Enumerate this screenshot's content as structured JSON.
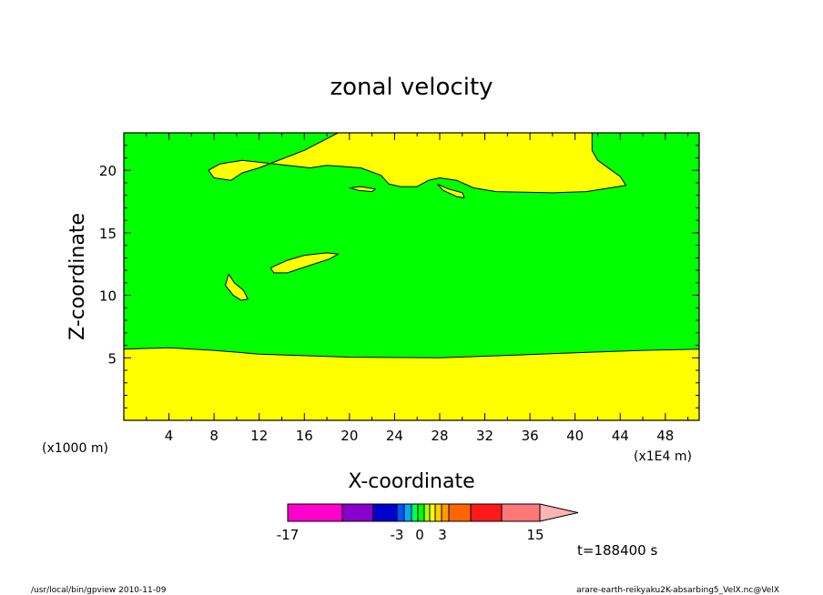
{
  "chart_data": {
    "type": "heatmap",
    "title": "zonal velocity",
    "xlabel": "X-coordinate",
    "ylabel": "Z-coordinate",
    "x_units_label": "(x1E4 m)",
    "y_units_label": "(x1000 m)",
    "x_ticks": [
      "4",
      "8",
      "12",
      "16",
      "20",
      "24",
      "28",
      "32",
      "36",
      "40",
      "44",
      "48"
    ],
    "x_tick_values": [
      4,
      8,
      12,
      16,
      20,
      24,
      28,
      32,
      36,
      40,
      44,
      48
    ],
    "y_ticks": [
      "5",
      "10",
      "15",
      "20"
    ],
    "y_tick_values": [
      5,
      10,
      15,
      20
    ],
    "xlim": [
      0,
      51
    ],
    "ylim": [
      0,
      23
    ],
    "background_level_color": "#00ff00",
    "regions": [
      {
        "name": "surface-positive-layer",
        "color": "#ffff00",
        "polygon": [
          [
            0,
            0
          ],
          [
            51,
            0
          ],
          [
            51,
            5.7
          ],
          [
            46,
            5.6
          ],
          [
            40,
            5.4
          ],
          [
            34,
            5.2
          ],
          [
            28,
            5.0
          ],
          [
            20,
            5.05
          ],
          [
            12,
            5.3
          ],
          [
            8,
            5.6
          ],
          [
            4,
            5.8
          ],
          [
            0,
            5.7
          ]
        ]
      },
      {
        "name": "upper-positive-layer",
        "color": "#ffff00",
        "polygon": [
          [
            7.5,
            20.0
          ],
          [
            8.5,
            20.5
          ],
          [
            10.5,
            20.8
          ],
          [
            12.5,
            20.6
          ],
          [
            14.5,
            20.4
          ],
          [
            16.5,
            20.2
          ],
          [
            18,
            20.4
          ],
          [
            21,
            20.2
          ],
          [
            22.8,
            19.6
          ],
          [
            23.5,
            18.9
          ],
          [
            24.5,
            18.7
          ],
          [
            26,
            18.7
          ],
          [
            27,
            19.2
          ],
          [
            28,
            19.4
          ],
          [
            29.5,
            19.2
          ],
          [
            31,
            18.6
          ],
          [
            33,
            18.3
          ],
          [
            38,
            18.2
          ],
          [
            41,
            18.3
          ],
          [
            44.5,
            18.8
          ],
          [
            44,
            19.5
          ],
          [
            42,
            20.8
          ],
          [
            41.5,
            21.6
          ],
          [
            41.5,
            23
          ],
          [
            19,
            23
          ],
          [
            16,
            21.6
          ],
          [
            14,
            20.9
          ],
          [
            12,
            20.2
          ],
          [
            10.5,
            19.8
          ],
          [
            9.5,
            19.2
          ],
          [
            8.0,
            19.4
          ]
        ]
      },
      {
        "name": "upper-small-blob",
        "color": "#ffff00",
        "polygon": [
          [
            27.8,
            18.9
          ],
          [
            28.8,
            18.5
          ],
          [
            30,
            18.2
          ],
          [
            30.2,
            17.8
          ],
          [
            29.5,
            17.9
          ],
          [
            28.3,
            18.4
          ]
        ]
      },
      {
        "name": "upper-thin-sliver",
        "color": "#ffff00",
        "polygon": [
          [
            20.0,
            18.6
          ],
          [
            21.0,
            18.7
          ],
          [
            22.3,
            18.5
          ],
          [
            22.0,
            18.3
          ],
          [
            20.8,
            18.4
          ]
        ]
      },
      {
        "name": "mid-elongated-blob",
        "color": "#ffff00",
        "polygon": [
          [
            13.0,
            12.2
          ],
          [
            14.5,
            12.8
          ],
          [
            16,
            13.2
          ],
          [
            18,
            13.4
          ],
          [
            19,
            13.3
          ],
          [
            18.2,
            12.9
          ],
          [
            16.5,
            12.4
          ],
          [
            14.5,
            11.8
          ],
          [
            13.3,
            11.8
          ]
        ]
      },
      {
        "name": "mid-small-blob",
        "color": "#ffff00",
        "polygon": [
          [
            9.0,
            10.8
          ],
          [
            9.3,
            11.7
          ],
          [
            9.8,
            11.0
          ],
          [
            10.6,
            10.4
          ],
          [
            11.0,
            9.7
          ],
          [
            10.4,
            9.6
          ],
          [
            9.7,
            10.0
          ]
        ]
      }
    ],
    "colorbar": {
      "levels_shown": [
        "-17",
        "-3",
        "0",
        "3",
        "15"
      ],
      "colors": [
        "#ff00cc",
        "#8800cc",
        "#0000cc",
        "#0055ff",
        "#00aaff",
        "#00ff55",
        "#00ff00",
        "#aaff00",
        "#ffff00",
        "#ffcc00",
        "#ff9900",
        "#ff6600",
        "#ff1a1a",
        "#ff7777",
        "#ffb3b3"
      ]
    },
    "time_label": "t=188400 s"
  },
  "footer": {
    "left": "/usr/local/bin/gpview   2010-11-09",
    "right": "arare-earth-reikyaku2K-absarbing5_VelX.nc@VelX"
  }
}
